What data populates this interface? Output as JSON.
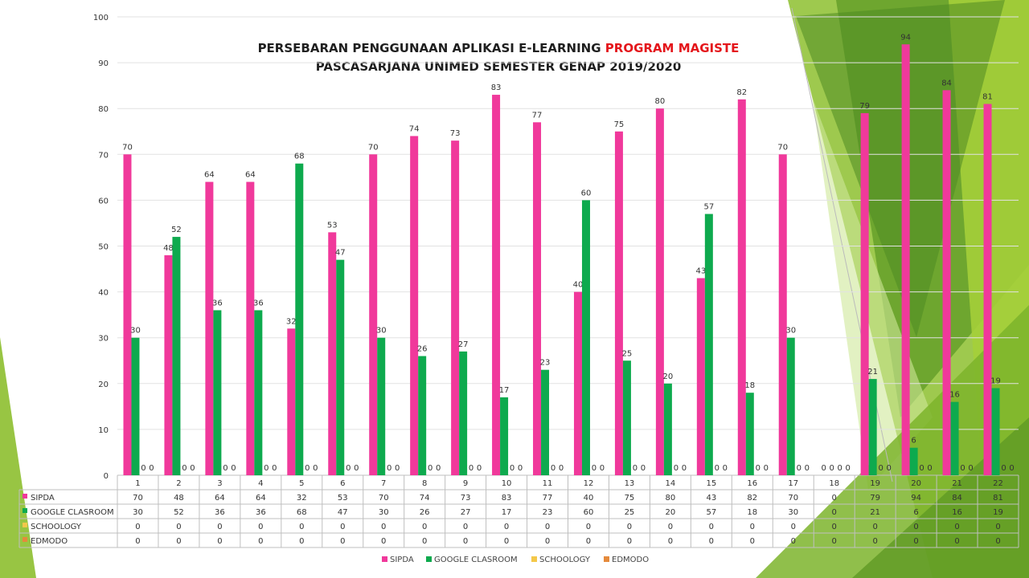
{
  "title": {
    "line1_prefix": "PERSEBARAN PENGGUNAAN APLIKASI E-LEARNING",
    "line1_highlight": "PROGRAM MAGISTE",
    "line2": "PASCASARJANA UNIMED SEMESTER GENAP 2019/2020"
  },
  "colors": {
    "SIPDA": "#f0399b",
    "GOOGLE CLASROOM": "#0eaa4e",
    "SCHOOLOGY": "#f4c84a",
    "EDMODO": "#e58a3c"
  },
  "chart_data": {
    "type": "bar",
    "title": "PERSEBARAN PENGGUNAAN APLIKASI E-LEARNING PROGRAM MAGISTE PASCASARJANA UNIMED SEMESTER GENAP 2019/2020",
    "categories": [
      "1",
      "2",
      "3",
      "4",
      "5",
      "6",
      "7",
      "8",
      "9",
      "10",
      "11",
      "12",
      "13",
      "14",
      "15",
      "16",
      "17",
      "18",
      "19",
      "20",
      "21",
      "22"
    ],
    "series": [
      {
        "name": "SIPDA",
        "values": [
          70,
          48,
          64,
          64,
          32,
          53,
          70,
          74,
          73,
          83,
          77,
          40,
          75,
          80,
          43,
          82,
          70,
          0,
          79,
          94,
          84,
          81
        ]
      },
      {
        "name": "GOOGLE CLASROOM",
        "values": [
          30,
          52,
          36,
          36,
          68,
          47,
          30,
          26,
          27,
          17,
          23,
          60,
          25,
          20,
          57,
          18,
          30,
          0,
          21,
          6,
          16,
          19
        ]
      },
      {
        "name": "SCHOOLOGY",
        "values": [
          0,
          0,
          0,
          0,
          0,
          0,
          0,
          0,
          0,
          0,
          0,
          0,
          0,
          0,
          0,
          0,
          0,
          0,
          0,
          0,
          0,
          0
        ]
      },
      {
        "name": "EDMODO",
        "values": [
          0,
          0,
          0,
          0,
          0,
          0,
          0,
          0,
          0,
          0,
          0,
          0,
          0,
          0,
          0,
          0,
          0,
          0,
          0,
          0,
          0,
          0
        ]
      }
    ],
    "yticks": [
      "0",
      "10",
      "20",
      "30",
      "40",
      "50",
      "60",
      "70",
      "80",
      "90",
      "100"
    ],
    "ylim": [
      0,
      100
    ],
    "grid": true,
    "data_table": true,
    "legend_position": "bottom"
  }
}
